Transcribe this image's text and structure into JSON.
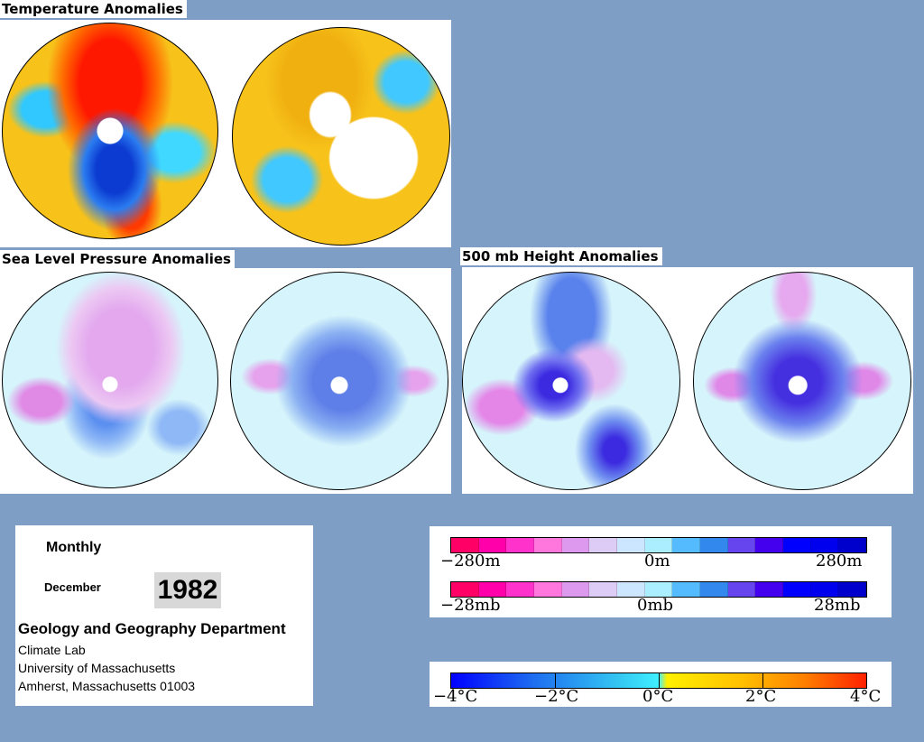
{
  "sections": {
    "temperature_title": "Temperature Anomalies",
    "slp_title": "Sea Level Pressure Anomalies",
    "height_title": "500 mb Height Anomalies"
  },
  "info": {
    "period": "Monthly",
    "month": "December",
    "year": "1982",
    "department": "Geology and Geography Department",
    "lab": "Climate Lab",
    "university": "University of Massachusetts",
    "address": "Amherst, Massachusetts 01003"
  },
  "legend_height": {
    "min_label": "−280m",
    "mid_label": "0m",
    "max_label": "280m",
    "colors": [
      "#ff0066",
      "#ff00aa",
      "#ff33cc",
      "#ff77dd",
      "#dd99ee",
      "#ddccf5",
      "#cce6ff",
      "#aaeeff",
      "#55bbff",
      "#3388ee",
      "#6644ee",
      "#4400ee",
      "#0000ff",
      "#0000ee",
      "#0000cc"
    ]
  },
  "legend_pressure": {
    "min_label": "−28mb",
    "mid_label": "0mb",
    "max_label": "28mb",
    "colors": [
      "#ff0066",
      "#ff00aa",
      "#ff33cc",
      "#ff77dd",
      "#dd99ee",
      "#ddccf5",
      "#cce6ff",
      "#aaeeff",
      "#55bbff",
      "#3388ee",
      "#6644ee",
      "#4400ee",
      "#0000ff",
      "#0000ee",
      "#0000cc"
    ]
  },
  "legend_temperature": {
    "labels": [
      "−4°C",
      "−2°C",
      "0°C",
      "2°C",
      "4°C"
    ]
  },
  "colors": {
    "background": "#7f9ec6",
    "warm": "#ff2000",
    "cool": "#1e6ef0",
    "neutral": "#e0f6ff"
  }
}
